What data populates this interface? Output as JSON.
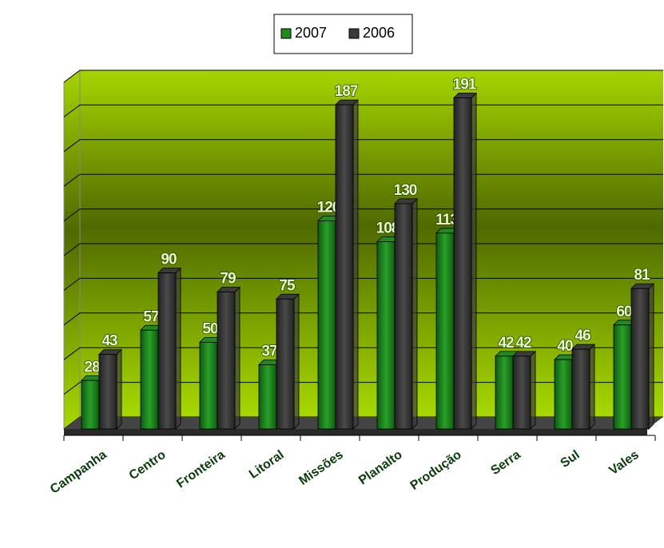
{
  "chart_data": {
    "type": "bar3d",
    "categories": [
      "Campanha",
      "Centro",
      "Fronteira",
      "Litoral",
      "Missões",
      "Planalto",
      "Produção",
      "Serra",
      "Sul",
      "Vales"
    ],
    "series": [
      {
        "name": "2007",
        "color": "#1f8a1f",
        "values": [
          28,
          57,
          50,
          37,
          120,
          108,
          113,
          42,
          40,
          60
        ]
      },
      {
        "name": "2006",
        "color": "#3a3a3a",
        "values": [
          43,
          90,
          79,
          75,
          187,
          130,
          191,
          42,
          46,
          81
        ]
      }
    ],
    "ylim": [
      0,
      200
    ],
    "yticks": [
      0,
      20,
      40,
      60,
      80,
      100,
      120,
      140,
      160,
      180,
      200
    ],
    "grid": true,
    "legend": "top"
  }
}
